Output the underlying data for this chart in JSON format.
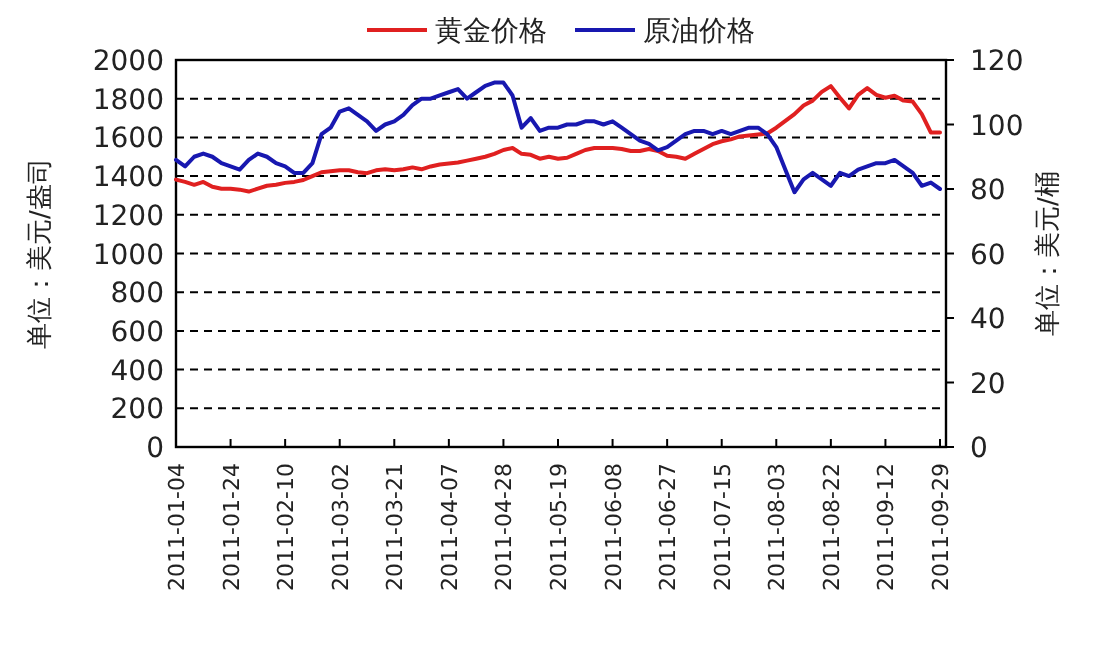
{
  "chart_data": {
    "type": "line",
    "ylabel": "单位：美元/盎司",
    "y2label": "单位：美元/桶",
    "legend": "top",
    "grid": "y",
    "categories": [
      "2011-01-04",
      null,
      null,
      null,
      null,
      null,
      "2011-01-24",
      null,
      null,
      null,
      null,
      null,
      "2011-02-10",
      null,
      null,
      null,
      null,
      null,
      "2011-03-02",
      null,
      null,
      null,
      null,
      null,
      "2011-03-21",
      null,
      null,
      null,
      null,
      null,
      "2011-04-07",
      null,
      null,
      null,
      null,
      null,
      "2011-04-28",
      null,
      null,
      null,
      null,
      null,
      "2011-05-19",
      null,
      null,
      null,
      null,
      null,
      "2011-06-08",
      null,
      null,
      null,
      null,
      null,
      "2011-06-27",
      null,
      null,
      null,
      null,
      null,
      "2011-07-15",
      null,
      null,
      null,
      null,
      null,
      "2011-08-03",
      null,
      null,
      null,
      null,
      null,
      "2011-08-22",
      null,
      null,
      null,
      null,
      null,
      "2011-09-12",
      null,
      null,
      null,
      null,
      null,
      "2011-09-29"
    ],
    "ylim": [
      0,
      2000
    ],
    "yticks": [
      0,
      200,
      400,
      600,
      800,
      1000,
      1200,
      1400,
      1600,
      1800,
      2000
    ],
    "y2lim": [
      0,
      120
    ],
    "y2ticks": [
      0,
      20,
      40,
      60,
      80,
      100,
      120
    ],
    "series": [
      {
        "name": "黄金价格",
        "color": "#e02020",
        "values": [
          1382,
          1370,
          1355,
          1370,
          1345,
          1335,
          1335,
          1330,
          1320,
          1335,
          1350,
          1355,
          1365,
          1370,
          1380,
          1400,
          1420,
          1425,
          1430,
          1430,
          1420,
          1415,
          1430,
          1435,
          1430,
          1435,
          1445,
          1435,
          1450,
          1460,
          1465,
          1470,
          1480,
          1490,
          1500,
          1515,
          1535,
          1545,
          1515,
          1510,
          1490,
          1500,
          1490,
          1495,
          1515,
          1535,
          1545,
          1545,
          1545,
          1540,
          1530,
          1530,
          1540,
          1530,
          1505,
          1500,
          1490,
          1515,
          1540,
          1565,
          1580,
          1590,
          1605,
          1610,
          1615,
          1620,
          1650,
          1685,
          1720,
          1765,
          1790,
          1835,
          1865,
          1805,
          1750,
          1820,
          1855,
          1820,
          1805,
          1815,
          1790,
          1785,
          1720,
          1625,
          1625
        ]
      },
      {
        "name": "原油价格",
        "color": "#1818b0",
        "axis": "y2",
        "values": [
          89,
          87,
          90,
          91,
          90,
          88,
          87,
          86,
          89,
          91,
          90,
          88,
          87,
          85,
          85,
          88,
          97,
          99,
          104,
          105,
          103,
          101,
          98,
          100,
          101,
          103,
          106,
          108,
          108,
          109,
          110,
          111,
          108,
          110,
          112,
          113,
          113,
          109,
          99,
          102,
          98,
          99,
          99,
          100,
          100,
          101,
          101,
          100,
          101,
          99,
          97,
          95,
          94,
          92,
          93,
          95,
          97,
          98,
          98,
          97,
          98,
          97,
          98,
          99,
          99,
          97,
          93,
          86,
          79,
          83,
          85,
          83,
          81,
          85,
          84,
          86,
          87,
          88,
          88,
          89,
          87,
          85,
          81,
          82,
          80
        ]
      }
    ]
  }
}
